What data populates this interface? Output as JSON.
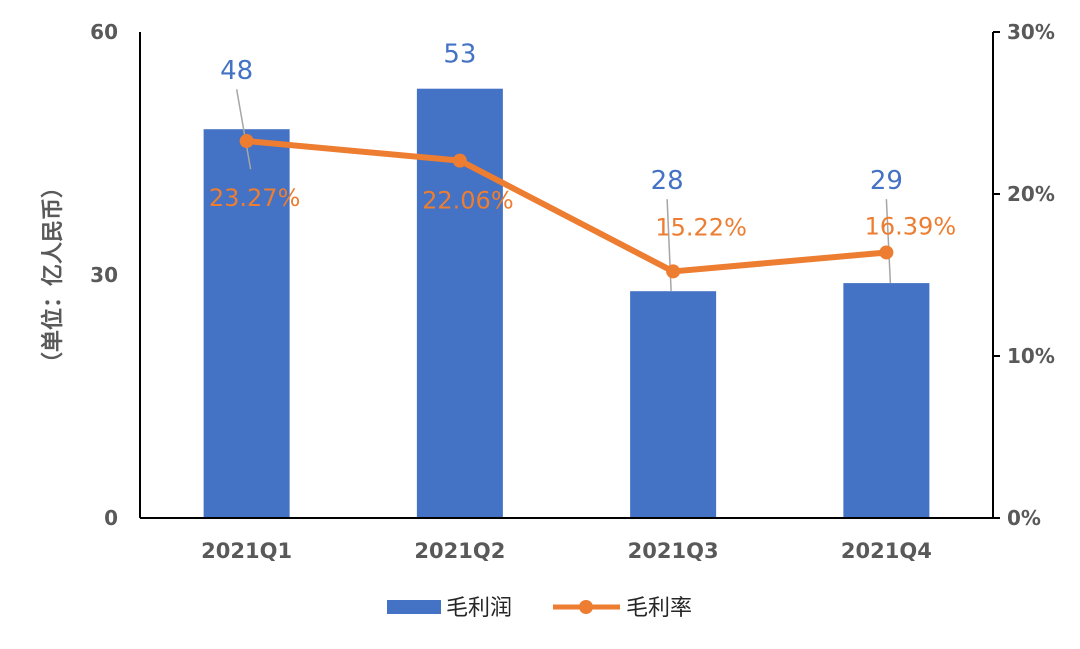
{
  "chart_data": {
    "type": "bar",
    "categories": [
      "2021Q1",
      "2021Q2",
      "2021Q3",
      "2021Q4"
    ],
    "series": [
      {
        "name": "毛利润",
        "type": "bar",
        "axis": "left",
        "values": [
          48,
          53,
          28,
          29
        ],
        "labels": [
          "48",
          "53",
          "28",
          "29"
        ],
        "color": "#4472C4"
      },
      {
        "name": "毛利率",
        "type": "line",
        "axis": "right",
        "values": [
          23.27,
          22.06,
          15.22,
          16.39
        ],
        "labels": [
          "23.27%",
          "22.06%",
          "15.22%",
          "16.39%"
        ],
        "color": "#ED7D31"
      }
    ],
    "ylabel": "（单位：亿人民币）",
    "ylim": [
      0,
      60
    ],
    "yticks": [
      "0",
      "30",
      "60"
    ],
    "y2lim": [
      0,
      30
    ],
    "y2ticks": [
      "0%",
      "10%",
      "20%",
      "30%"
    ],
    "legend": "bottom",
    "grid": false
  }
}
